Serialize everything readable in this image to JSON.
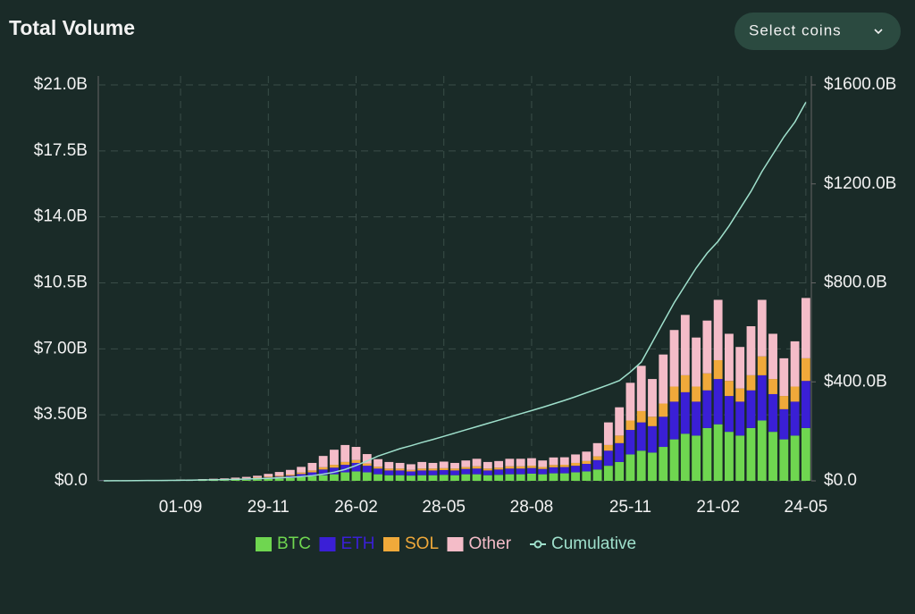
{
  "chart_data": {
    "type": "bar",
    "title": "Total Volume",
    "button": "Select coins",
    "categories": [
      null,
      null,
      null,
      null,
      null,
      null,
      null,
      "01-09",
      null,
      null,
      null,
      null,
      null,
      null,
      null,
      "29-11",
      null,
      null,
      null,
      null,
      null,
      null,
      null,
      "26-02",
      null,
      null,
      null,
      null,
      null,
      null,
      null,
      "28-05",
      null,
      null,
      null,
      null,
      null,
      null,
      null,
      "28-08",
      null,
      null,
      null,
      null,
      null,
      null,
      null,
      null,
      "25-11",
      null,
      null,
      null,
      null,
      null,
      null,
      null,
      "21-02",
      null,
      null,
      null,
      null,
      null,
      null,
      null,
      "24-05"
    ],
    "series": [
      {
        "name": "BTC",
        "color": "#6fd650",
        "values": [
          0.01,
          0.01,
          0.01,
          0.02,
          0.01,
          0.01,
          0.02,
          0.02,
          0.02,
          0.03,
          0.03,
          0.04,
          0.05,
          0.06,
          0.08,
          0.1,
          0.12,
          0.15,
          0.2,
          0.25,
          0.3,
          0.35,
          0.45,
          0.5,
          0.45,
          0.35,
          0.3,
          0.3,
          0.28,
          0.3,
          0.3,
          0.32,
          0.3,
          0.35,
          0.35,
          0.3,
          0.32,
          0.35,
          0.35,
          0.38,
          0.35,
          0.4,
          0.4,
          0.45,
          0.5,
          0.6,
          0.8,
          1.0,
          1.4,
          1.6,
          1.5,
          1.8,
          2.2,
          2.5,
          2.4,
          2.8,
          3.0,
          2.6,
          2.4,
          2.8,
          3.2,
          2.6,
          2.2,
          2.4,
          2.8
        ]
      },
      {
        "name": "ETH",
        "color": "#3a1fd6",
        "values": [
          0.01,
          0.01,
          0.01,
          0.01,
          0.01,
          0.01,
          0.01,
          0.02,
          0.02,
          0.02,
          0.03,
          0.03,
          0.04,
          0.05,
          0.06,
          0.08,
          0.1,
          0.12,
          0.16,
          0.2,
          0.3,
          0.35,
          0.4,
          0.45,
          0.35,
          0.3,
          0.25,
          0.25,
          0.22,
          0.25,
          0.25,
          0.25,
          0.25,
          0.28,
          0.3,
          0.25,
          0.28,
          0.3,
          0.3,
          0.3,
          0.28,
          0.32,
          0.33,
          0.35,
          0.4,
          0.5,
          0.8,
          1.0,
          1.3,
          1.5,
          1.4,
          1.6,
          2.0,
          2.2,
          1.8,
          2.0,
          2.4,
          1.9,
          1.8,
          2.0,
          2.4,
          2.0,
          1.6,
          1.8,
          2.5
        ]
      },
      {
        "name": "SOL",
        "color": "#f0a93a",
        "values": [
          0,
          0,
          0,
          0,
          0,
          0,
          0,
          0.01,
          0.01,
          0.01,
          0.01,
          0.01,
          0.02,
          0.02,
          0.03,
          0.04,
          0.05,
          0.06,
          0.08,
          0.1,
          0.12,
          0.15,
          0.15,
          0.15,
          0.12,
          0.1,
          0.1,
          0.1,
          0.08,
          0.1,
          0.1,
          0.1,
          0.1,
          0.1,
          0.12,
          0.1,
          0.1,
          0.12,
          0.12,
          0.12,
          0.1,
          0.12,
          0.12,
          0.15,
          0.15,
          0.2,
          0.3,
          0.4,
          0.5,
          0.6,
          0.5,
          0.7,
          0.8,
          0.9,
          0.8,
          0.9,
          1.0,
          0.8,
          0.7,
          0.8,
          1.0,
          0.8,
          0.7,
          0.8,
          1.2
        ]
      },
      {
        "name": "Other",
        "color": "#f4bcc8",
        "values": [
          0.01,
          0.01,
          0.01,
          0.01,
          0.01,
          0.02,
          0.01,
          0.02,
          0.02,
          0.03,
          0.04,
          0.05,
          0.06,
          0.08,
          0.1,
          0.15,
          0.2,
          0.25,
          0.3,
          0.4,
          0.6,
          0.8,
          0.9,
          0.7,
          0.5,
          0.4,
          0.35,
          0.3,
          0.3,
          0.35,
          0.3,
          0.35,
          0.3,
          0.35,
          0.4,
          0.35,
          0.35,
          0.4,
          0.4,
          0.4,
          0.35,
          0.4,
          0.4,
          0.45,
          0.5,
          0.7,
          1.2,
          1.5,
          2.0,
          2.4,
          2.0,
          2.6,
          3.0,
          3.2,
          2.6,
          2.8,
          3.2,
          2.5,
          2.2,
          2.6,
          3.0,
          2.4,
          2.0,
          2.4,
          3.2
        ]
      },
      {
        "name": "Cumulative",
        "color": "#9fe0cc",
        "type": "line",
        "axis": "y2",
        "values": [
          0,
          0.3,
          0.6,
          0.9,
          1.2,
          1.5,
          1.9,
          2.3,
          2.8,
          3.4,
          4,
          5,
          6,
          7,
          8.5,
          10,
          12,
          14,
          17,
          21,
          27,
          35,
          46,
          62,
          80,
          100,
          115,
          130,
          142,
          155,
          167,
          180,
          193,
          206,
          219,
          232,
          245,
          258,
          271,
          284,
          297,
          311,
          325,
          340,
          356,
          372,
          388,
          405,
          440,
          480,
          560,
          640,
          720,
          790,
          860,
          920,
          968,
          1030,
          1100,
          1170,
          1250,
          1320,
          1390,
          1450,
          1530
        ]
      }
    ],
    "ylim": [
      0,
      21
    ],
    "yticks": [
      {
        "value": 0,
        "label": "$0.0"
      },
      {
        "value": 3.5,
        "label": "$3.50B"
      },
      {
        "value": 7,
        "label": "$7.00B"
      },
      {
        "value": 10.5,
        "label": "$10.5B"
      },
      {
        "value": 14,
        "label": "$14.0B"
      },
      {
        "value": 17.5,
        "label": "$17.5B"
      },
      {
        "value": 21,
        "label": "$21.0B"
      }
    ],
    "y2lim": [
      0,
      1600
    ],
    "y2ticks": [
      {
        "value": 0,
        "label": "$0.0"
      },
      {
        "value": 400,
        "label": "$400.0B"
      },
      {
        "value": 800,
        "label": "$800.0B"
      },
      {
        "value": 1200,
        "label": "$1200.0B"
      },
      {
        "value": 1600,
        "label": "$1600.0B"
      }
    ],
    "grid": true
  }
}
